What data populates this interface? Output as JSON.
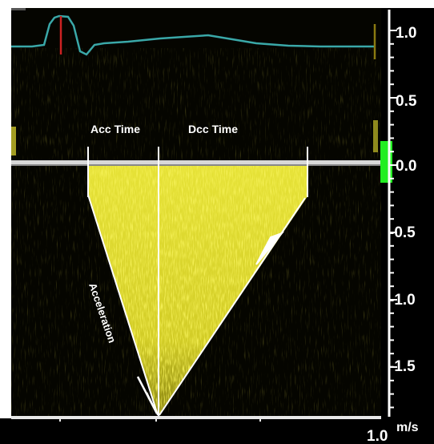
{
  "image_caption": "",
  "colors": {
    "background": "#050500",
    "doppler_signal": "#e8e32a",
    "ecg_trace": "#3aa8a8",
    "ecg_marker": "#cc2222",
    "baseline": "#c8c8c8",
    "baseline_marker": "#22ee22",
    "annotation": "#ffffff"
  },
  "annotations": {
    "acc_time": "Acc Time",
    "dcc_time": "Dcc Time",
    "acceleration": "Acceleration"
  },
  "scale": {
    "ticks": [
      "1.0",
      "0.5",
      "0.0",
      "-0.5",
      "-1.0",
      "-1.5"
    ],
    "unit": "m/s",
    "bottom_value": "1.0"
  }
}
